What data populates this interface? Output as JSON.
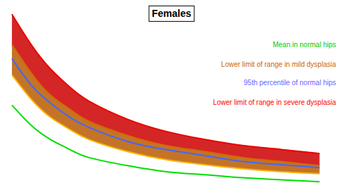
{
  "chart_data": {
    "type": "line",
    "title": "Females",
    "x": [
      0.0,
      0.5,
      1.0,
      1.5,
      2.0,
      3.0,
      4.0,
      5.0,
      6.0,
      7.0,
      8.0
    ],
    "series": [
      {
        "type": "area",
        "color": "#cc0000",
        "values": [
          90,
          75,
          63,
          54,
          47,
          38,
          32,
          28,
          25,
          23,
          21
        ]
      },
      {
        "type": "area",
        "color": "#b85c00",
        "values": [
          75,
          61,
          50,
          43,
          37,
          30,
          25,
          22,
          19,
          17,
          15
        ]
      },
      {
        "type": "line",
        "color": "#4466ff",
        "values": [
          68,
          55,
          46,
          39,
          34,
          27,
          23,
          20,
          17,
          15.5,
          14
        ]
      },
      {
        "type": "area",
        "color": "#ff9900",
        "values": [
          60,
          48,
          39,
          33,
          28,
          22,
          18,
          15.5,
          13.5,
          12,
          11
        ]
      },
      {
        "type": "line",
        "color": "#00dd00",
        "values": [
          45,
          35,
          28,
          23,
          19,
          15,
          12,
          10.5,
          9,
          8,
          7
        ]
      }
    ],
    "annotations": [
      {
        "text": "Lower limit of range in severe dysplasia",
        "color": "#ff0000"
      },
      {
        "text": "95th percentile of normal hips",
        "color": "#6666ff"
      },
      {
        "text": "Lower limit of range in mild dysplasia",
        "color": "#cc6600"
      },
      {
        "text": "Mean in normal hips",
        "color": "#00cc00"
      }
    ],
    "xlim": [
      -0.2,
      8.5
    ],
    "ylim": [
      5,
      95
    ],
    "tick_labels": false,
    "grid": false
  }
}
